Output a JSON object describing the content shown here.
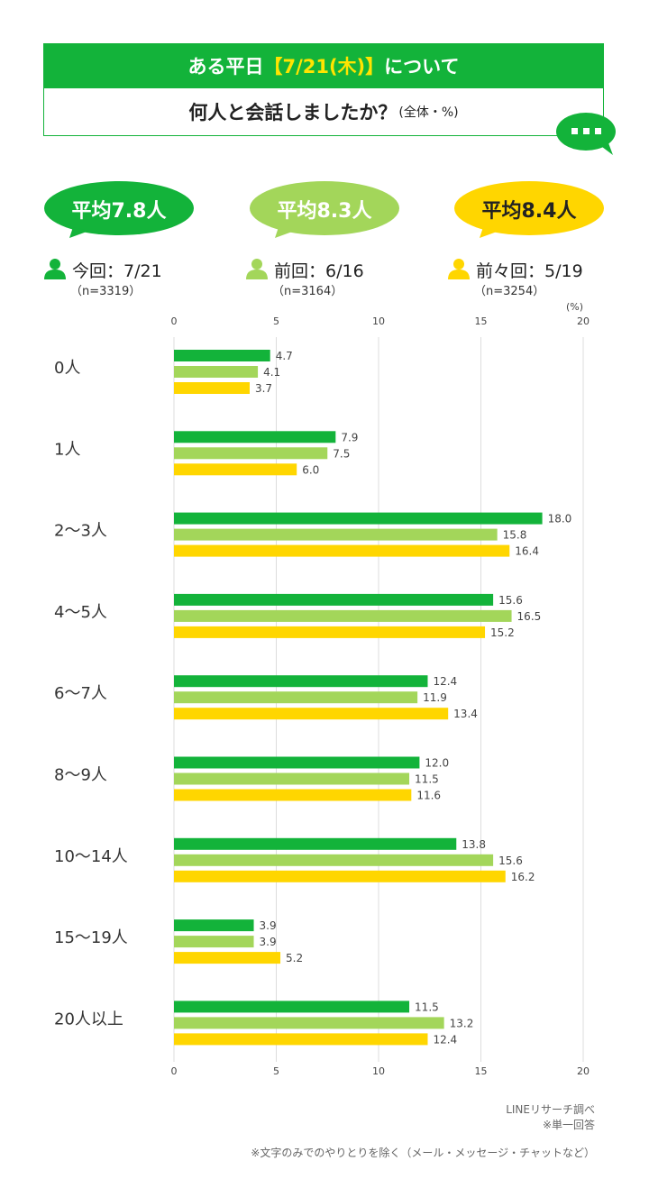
{
  "header": {
    "title_prefix": "ある平日",
    "title_highlight": "【7/21(木)】",
    "title_suffix": "について",
    "question": "何人と会話しましたか？",
    "question_note": "(全体・%)"
  },
  "bubbles": [
    {
      "text": "平均7.8人",
      "fill": "#13b33a",
      "color": "#ffffff"
    },
    {
      "text": "平均8.3人",
      "fill": "#a3d65a",
      "color": "#ffffff"
    },
    {
      "text": "平均8.4人",
      "fill": "#ffd600",
      "color": "#222222"
    }
  ],
  "legend": [
    {
      "label": "今回：7/21",
      "n": "（n=3319）",
      "color": "#13b33a"
    },
    {
      "label": "前回：6/16",
      "n": "（n=3164）",
      "color": "#a3d65a"
    },
    {
      "label": "前々回：5/19",
      "n": "（n=3254）",
      "color": "#ffd600"
    }
  ],
  "chart_data": {
    "type": "bar",
    "orientation": "horizontal",
    "unit_label": "(%)",
    "xlim": [
      0,
      20
    ],
    "ticks": [
      0,
      5,
      10,
      15,
      20
    ],
    "grid": true,
    "categories": [
      "0人",
      "1人",
      "2〜3人",
      "4〜5人",
      "6〜7人",
      "8〜9人",
      "10〜14人",
      "15〜19人",
      "20人以上"
    ],
    "series": [
      {
        "name": "今回：7/21",
        "color": "#13b33a",
        "values": [
          4.7,
          7.9,
          18.0,
          15.6,
          12.4,
          12.0,
          13.8,
          3.9,
          11.5
        ],
        "labels": [
          "4.7",
          "7.9",
          "18.0",
          "15.6",
          "12.4",
          "12.0",
          "13.8",
          "3.9",
          "11.5"
        ]
      },
      {
        "name": "前回：6/16",
        "color": "#a3d65a",
        "values": [
          4.1,
          7.5,
          15.8,
          16.5,
          11.9,
          11.5,
          15.6,
          3.9,
          13.2
        ],
        "labels": [
          "4.1",
          "7.5",
          "15.8",
          "16.5",
          "11.9",
          "11.5",
          "15.6",
          "3.9",
          "13.2"
        ]
      },
      {
        "name": "前々回：5/19",
        "color": "#ffd600",
        "values": [
          3.7,
          6.0,
          16.4,
          15.2,
          13.4,
          11.6,
          16.2,
          5.2,
          12.4
        ],
        "labels": [
          "3.7",
          "6.0",
          "16.4",
          "15.2",
          "13.4",
          "11.6",
          "16.2",
          "5.2",
          "12.4"
        ]
      }
    ]
  },
  "notes": {
    "source": "LINEリサーチ調べ",
    "answer_type": "※単一回答",
    "footnote": "※文字のみでのやりとりを除く（メール・メッセージ・チャットなど）"
  },
  "colors": {
    "brand_green": "#13b33a",
    "title_highlight": "#ffe400"
  }
}
